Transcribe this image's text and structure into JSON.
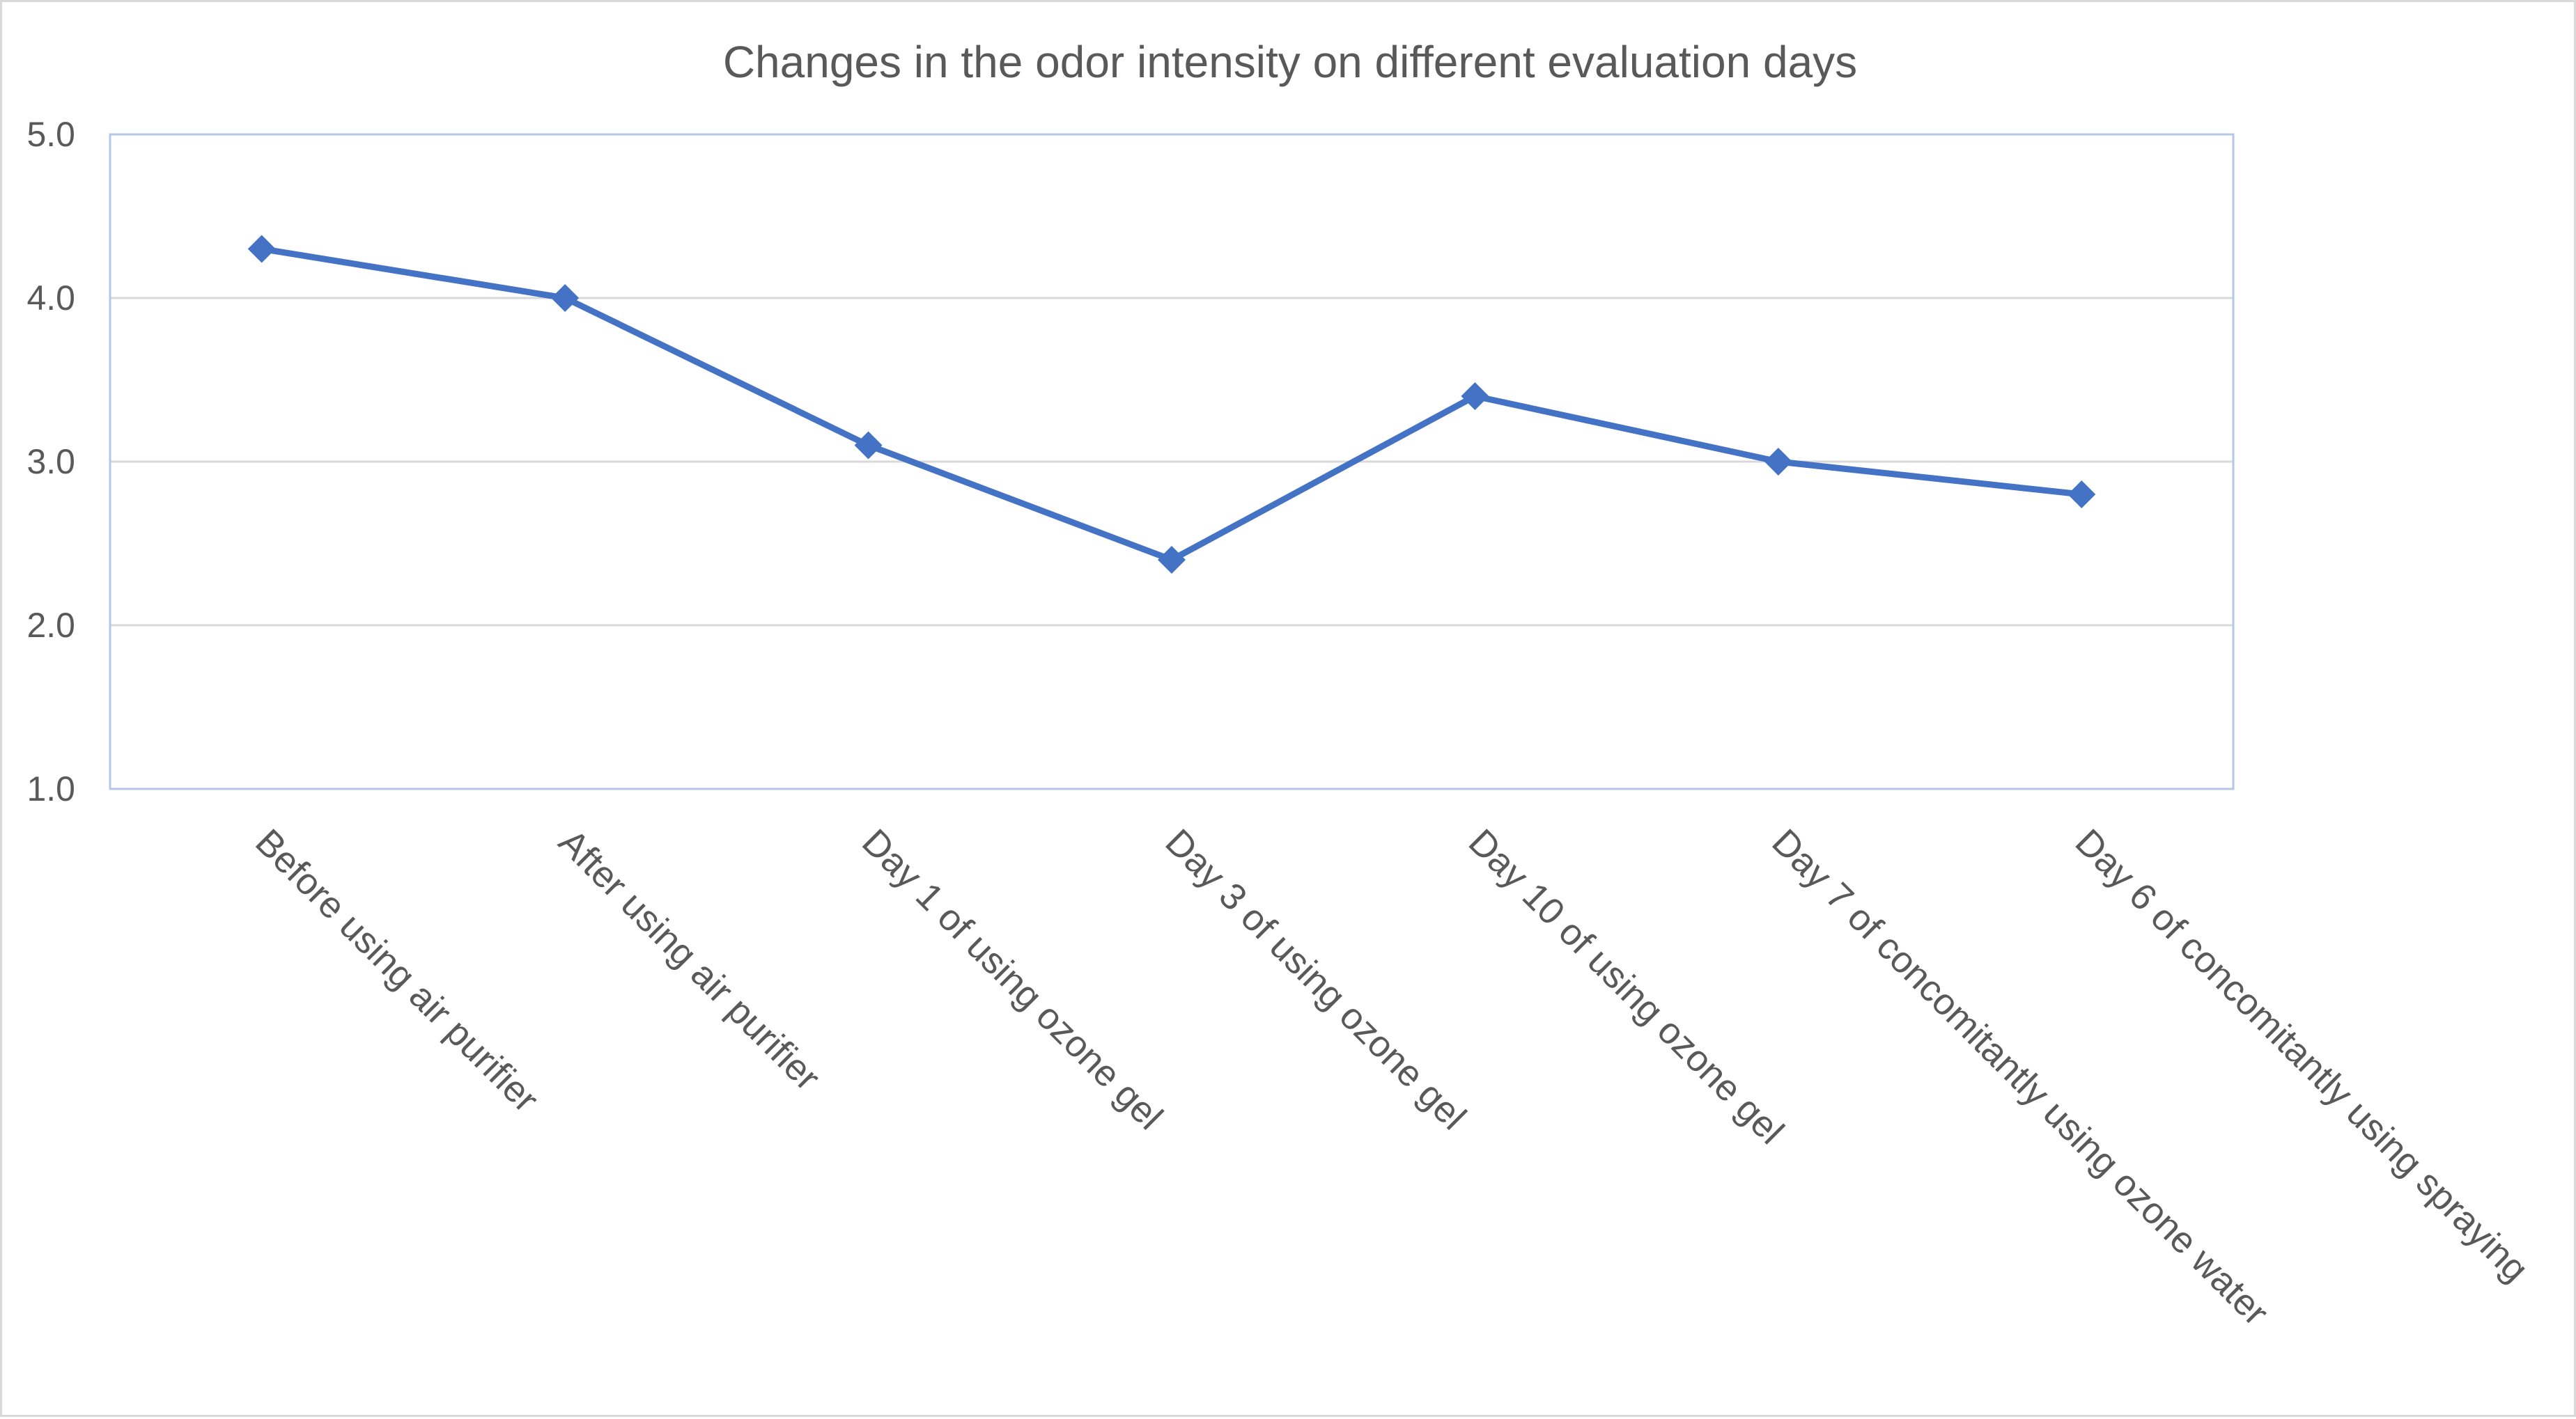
{
  "chart_data": {
    "type": "line",
    "title": "Changes in the odor intensity on different evaluation days",
    "xlabel": "",
    "ylabel": "",
    "categories": [
      "Before using air purifier",
      "After using air purifier",
      "Day 1 of using ozone gel",
      "Day 3 of using ozone gel",
      "Day 10 of using ozone gel",
      "Day 7 of concomitantly using ozone water",
      "Day 6 of concomitantly using spraying"
    ],
    "series": [
      {
        "values": [
          4.3,
          4.0,
          3.1,
          2.4,
          3.4,
          3.0,
          2.8
        ],
        "color": "#4472c4",
        "marker": "diamond"
      }
    ],
    "y_ticks": [
      "1.0",
      "2.0",
      "3.0",
      "4.0",
      "5.0"
    ],
    "ylim": [
      1.0,
      5.0
    ],
    "grid": true,
    "legend": "none"
  }
}
